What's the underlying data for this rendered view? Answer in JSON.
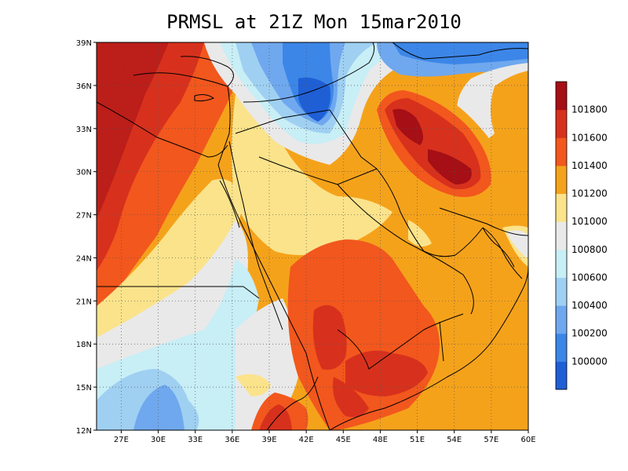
{
  "title": "PRMSL at 21Z Mon 15mar2010",
  "map": {
    "lon_range": [
      25,
      60
    ],
    "lat_range": [
      12,
      39
    ],
    "lon_ticks": [
      "27E",
      "30E",
      "33E",
      "36E",
      "39E",
      "42E",
      "45E",
      "48E",
      "51E",
      "54E",
      "57E",
      "60E"
    ],
    "lat_ticks": [
      "12N",
      "15N",
      "18N",
      "21N",
      "24N",
      "27N",
      "30N",
      "33N",
      "36N",
      "39N"
    ],
    "grid": "dotted",
    "boundaries": "coastlines and country borders (black)"
  },
  "colorbar": {
    "labels": [
      "100000",
      "100200",
      "100400",
      "100600",
      "100800",
      "101000",
      "101200",
      "101400",
      "101600",
      "101800"
    ],
    "colors": [
      "#1f5fd6",
      "#3c86e8",
      "#6fa8ee",
      "#9fd0f2",
      "#c8eef6",
      "#e9e9e9",
      "#fbe38b",
      "#f5a21b",
      "#f2571d",
      "#d7311d",
      "#a50f15"
    ]
  }
}
